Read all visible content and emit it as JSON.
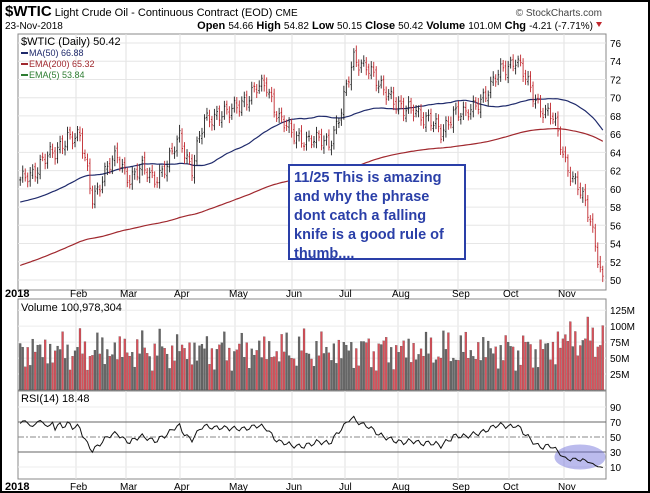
{
  "header": {
    "symbol": "$WTIC",
    "name": "Light Crude Oil - Continuous Contract (EOD)",
    "exchange": "CME",
    "date": "23-Nov-2018",
    "brand": "© StockCharts.com",
    "open_label": "Open",
    "open": "54.66",
    "high_label": "High",
    "high": "54.82",
    "low_label": "Low",
    "low": "50.15",
    "close_label": "Close",
    "close": "50.42",
    "volume_label": "Volume",
    "volume": "101.0M",
    "chg_label": "Chg",
    "chg": "-4.21 (-7.71%)"
  },
  "legend": {
    "price": "$WTIC (Daily) 50.42",
    "ma50": "MA(50) 66.88",
    "ema200": "EMA(200) 65.32",
    "ema5": "EMA(5) 53.84",
    "volume": "Volume 100,978,304",
    "rsi": "RSI(14) 18.48"
  },
  "annotation": "11/25  This is amazing and why the phrase dont catch a falling knife is a good rule of thumb....",
  "colors": {
    "up": "#222222",
    "down": "#c0272d",
    "ma50": "#1f2a6b",
    "ema200": "#a0282e",
    "ema5": "#2e7d32",
    "vol_up": "#666666",
    "vol_down": "#d9505a",
    "rsi_highlight": "#6a6ad8"
  },
  "chart_data": {
    "type": "bar",
    "title": "$WTIC Light Crude Oil - Continuous Contract (EOD)",
    "price_axis": {
      "ticks": [
        50,
        52,
        54,
        56,
        58,
        60,
        62,
        64,
        66,
        68,
        70,
        72,
        74,
        76
      ],
      "ylim": [
        49,
        77
      ]
    },
    "x_ticks": [
      "2018",
      "Feb",
      "Mar",
      "Apr",
      "May",
      "Jun",
      "Jul",
      "Aug",
      "Sep",
      "Oct",
      "Nov"
    ],
    "weekly_closes": [
      60.4,
      61.4,
      63.4,
      63.6,
      66.1,
      65.4,
      59.2,
      61.7,
      63.5,
      61.2,
      62.0,
      61.4,
      62.3,
      65.9,
      62.1,
      67.4,
      68.4,
      68.1,
      69.7,
      70.7,
      71.3,
      67.9,
      65.8,
      65.7,
      65.1,
      65.1,
      68.6,
      74.2,
      73.8,
      71.0,
      70.5,
      68.3,
      68.7,
      67.6,
      65.9,
      68.7,
      67.8,
      69.8,
      71.0,
      73.3,
      74.3,
      71.3,
      69.1,
      67.6,
      63.1,
      60.2,
      56.5,
      50.42
    ],
    "volume_axis": {
      "ticks": [
        "125M",
        "100M",
        "75M",
        "50M",
        "25M"
      ],
      "ylim": [
        0,
        130
      ]
    },
    "rsi_axis": {
      "ticks": [
        90,
        70,
        50,
        30,
        10
      ],
      "overbought": 70,
      "oversold": 30
    }
  }
}
